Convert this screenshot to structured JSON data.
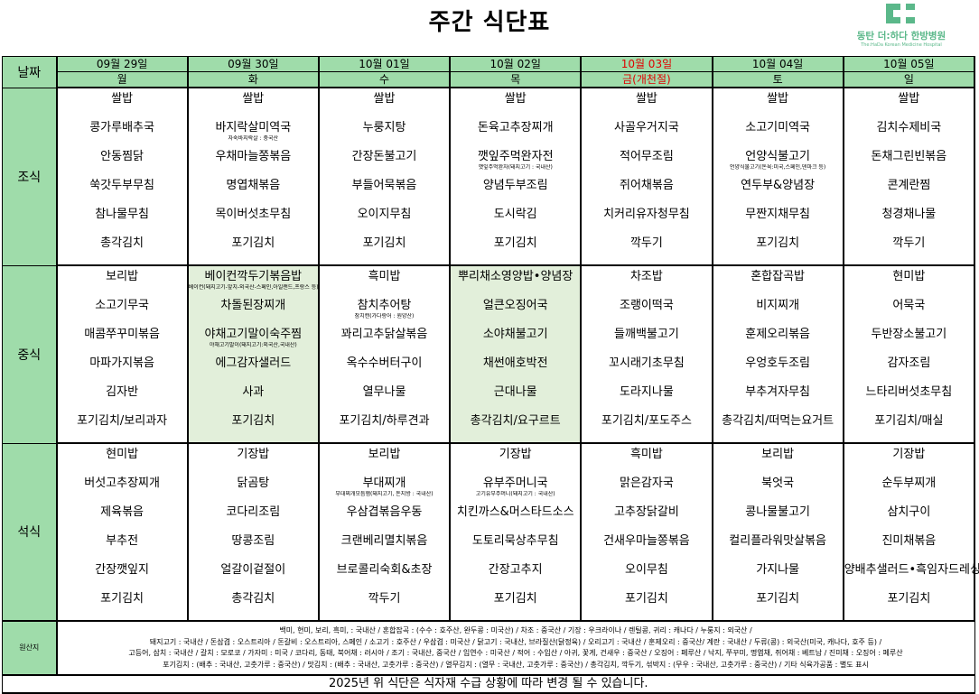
{
  "title": "주간 식단표",
  "logo": {
    "name_ko": "동탄 더:하다 한방병원",
    "name_en": "The:HaDa Korean Medicine Hospital",
    "color": "#5bb88a"
  },
  "labels": {
    "date": "날짜",
    "breakfast": "조식",
    "lunch": "중식",
    "dinner": "석식",
    "origin": "원산지"
  },
  "days": [
    {
      "date": "09월 29일",
      "weekday": "월",
      "holiday": false
    },
    {
      "date": "09월 30일",
      "weekday": "화",
      "holiday": false
    },
    {
      "date": "10월 01일",
      "weekday": "수",
      "holiday": false
    },
    {
      "date": "10월 02일",
      "weekday": "목",
      "holiday": false
    },
    {
      "date": "10월 03일",
      "weekday": "금(개천절)",
      "holiday": true
    },
    {
      "date": "10월 04일",
      "weekday": "토",
      "holiday": false
    },
    {
      "date": "10월 05일",
      "weekday": "일",
      "holiday": false
    }
  ],
  "meals": {
    "breakfast": [
      [
        {
          "t": "쌀밥"
        },
        {
          "t": "콩가루배추국"
        },
        {
          "t": "안동찜닭"
        },
        {
          "t": "쑥갓두부무침"
        },
        {
          "t": "참나물무침"
        },
        {
          "t": "총각김치"
        }
      ],
      [
        {
          "t": "쌀밥"
        },
        {
          "t": "바지락살미역국",
          "n": "자숙바지락살 : 중국산"
        },
        {
          "t": "우채마늘쫑볶음"
        },
        {
          "t": "명엽채볶음"
        },
        {
          "t": "목이버섯초무침"
        },
        {
          "t": "포기김치"
        }
      ],
      [
        {
          "t": "쌀밥"
        },
        {
          "t": "누룽지탕"
        },
        {
          "t": "간장돈불고기"
        },
        {
          "t": "부들어묵볶음"
        },
        {
          "t": "오이지무침"
        },
        {
          "t": "포기김치"
        }
      ],
      [
        {
          "t": "쌀밥"
        },
        {
          "t": "돈육고추장찌개"
        },
        {
          "t": "깻잎주먹완자전",
          "n": "깻잎주먹완자(돼지고기 : 국내산)"
        },
        {
          "t": "양념두부조림"
        },
        {
          "t": "도시락김"
        },
        {
          "t": "포기김치"
        }
      ],
      [
        {
          "t": "쌀밥"
        },
        {
          "t": "사골우거지국"
        },
        {
          "t": "적어무조림"
        },
        {
          "t": "쥐어채볶음"
        },
        {
          "t": "치커리유자청무침"
        },
        {
          "t": "깍두기"
        }
      ],
      [
        {
          "t": "쌀밥"
        },
        {
          "t": "소고기미역국"
        },
        {
          "t": "언양식불고기",
          "n": "언양식불고기(돈육:미국,스페인,덴마크 등)"
        },
        {
          "t": "연두부&양념장"
        },
        {
          "t": "무짠지채무침"
        },
        {
          "t": "포기김치"
        }
      ],
      [
        {
          "t": "쌀밥"
        },
        {
          "t": "김치수제비국"
        },
        {
          "t": "돈채그린빈볶음"
        },
        {
          "t": "콘계란찜"
        },
        {
          "t": "청경채나물"
        },
        {
          "t": "깍두기"
        }
      ]
    ],
    "lunch": [
      [
        {
          "t": "보리밥"
        },
        {
          "t": "소고기무국"
        },
        {
          "t": "매콤쭈꾸미볶음"
        },
        {
          "t": "마파가지볶음"
        },
        {
          "t": "김자반"
        },
        {
          "t": "포기김치/보리과자"
        }
      ],
      [
        {
          "t": "베이컨깍두기볶음밥",
          "n": "베이컨(돼지고기-앞치-외국산-스페인,아일랜드,프랑스 등)"
        },
        {
          "t": "차돌된장찌개"
        },
        {
          "t": "야채고기말이숙주찜",
          "n": "야채고기말이(돼지고기:외국산,국내산)"
        },
        {
          "t": "에그감자샐러드"
        },
        {
          "t": "사과"
        },
        {
          "t": "포기김치"
        }
      ],
      [
        {
          "t": "흑미밥"
        },
        {
          "t": "참치추어탕",
          "n": "참치캔(가다랑어 : 원양산)"
        },
        {
          "t": "꽈리고추닭살볶음"
        },
        {
          "t": "옥수수버터구이"
        },
        {
          "t": "열무나물"
        },
        {
          "t": "포기김치/하루견과"
        }
      ],
      [
        {
          "t": "뿌리채소영양밥•양념장"
        },
        {
          "t": "얼큰오징어국"
        },
        {
          "t": "소야채불고기"
        },
        {
          "t": "채썬애호박전"
        },
        {
          "t": "근대나물"
        },
        {
          "t": "총각김치/요구르트"
        }
      ],
      [
        {
          "t": "차조밥"
        },
        {
          "t": "조랭이떡국"
        },
        {
          "t": "들깨백불고기"
        },
        {
          "t": "꼬시래기초무침"
        },
        {
          "t": "도라지나물"
        },
        {
          "t": "포기김치/포도주스"
        }
      ],
      [
        {
          "t": "혼합잡곡밥"
        },
        {
          "t": "비지찌개"
        },
        {
          "t": "훈제오리볶음"
        },
        {
          "t": "우엉호두조림"
        },
        {
          "t": "부추겨자무침"
        },
        {
          "t": "총각김치/떠먹는요거트"
        }
      ],
      [
        {
          "t": "현미밥"
        },
        {
          "t": "어묵국"
        },
        {
          "t": "두반장소불고기"
        },
        {
          "t": "감자조림"
        },
        {
          "t": "느타리버섯초무침"
        },
        {
          "t": "포기김치/매실"
        }
      ]
    ],
    "dinner": [
      [
        {
          "t": "현미밥"
        },
        {
          "t": "버섯고추장찌개"
        },
        {
          "t": "제육볶음"
        },
        {
          "t": "부추전"
        },
        {
          "t": "간장깻잎지"
        },
        {
          "t": "포기김치"
        }
      ],
      [
        {
          "t": "기장밥"
        },
        {
          "t": "닭곰탕"
        },
        {
          "t": "코다리조림"
        },
        {
          "t": "땅콩조림"
        },
        {
          "t": "얼갈이겉절이"
        },
        {
          "t": "총각김치"
        }
      ],
      [
        {
          "t": "보리밥"
        },
        {
          "t": "부대찌개",
          "n": "부대찌개모듬햄(돼지고기, 돈지방 : 국내산)"
        },
        {
          "t": "우삼겹볶음우동"
        },
        {
          "t": "크랜베리멸치볶음"
        },
        {
          "t": "브로콜리숙회&초장"
        },
        {
          "t": "깍두기"
        }
      ],
      [
        {
          "t": "기장밥"
        },
        {
          "t": "유부주머니국",
          "n": "고기유부주머니(돼지고기 : 국내산)"
        },
        {
          "t": "치킨까스&머스타드소스"
        },
        {
          "t": "도토리묵상추무침"
        },
        {
          "t": "간장고추지"
        },
        {
          "t": "포기김치"
        }
      ],
      [
        {
          "t": "흑미밥"
        },
        {
          "t": "맑은감자국"
        },
        {
          "t": "고추장닭갈비"
        },
        {
          "t": "건새우마늘쫑볶음"
        },
        {
          "t": "오이무침"
        },
        {
          "t": "포기김치"
        }
      ],
      [
        {
          "t": "보리밥"
        },
        {
          "t": "북엇국"
        },
        {
          "t": "콩나물불고기"
        },
        {
          "t": "컬리플라워맛살볶음"
        },
        {
          "t": "가지나물"
        },
        {
          "t": "포기김치"
        }
      ],
      [
        {
          "t": "기장밥"
        },
        {
          "t": "순두부찌개"
        },
        {
          "t": "삼치구이"
        },
        {
          "t": "진미채볶음"
        },
        {
          "t": "양배추샐러드•흑임자드레싱"
        },
        {
          "t": "포기김치"
        }
      ]
    ]
  },
  "shaded_lunch_days": [
    1,
    3
  ],
  "origin_lines": [
    "백미, 현미, 보리, 흑미, : 국내산 / 혼합잡곡 : (수수 : 호주산, 완두콩 : 미국산) / 차조 : 중국산 / 기장 : 우크라이나 / 렌틸콩, 귀리 : 캐나다 / 누룽지 : 외국산 /",
    "돼지고기 : 국내산 / 돈삼겹 : 오스트리아 / 돈갈비 : 오스트리아, 스페인 / 소고기 : 호주산 / 우삼겹 : 미국산 / 닭고기 : 국내산, 브라질산(닭정육) / 오리고기 : 국내산 / 훈제오리 : 중국산/ 계란 : 국내산 / 두류(콩) : 외국산(미국, 캐나다, 호주 등) /",
    "고등어, 삼치 : 국내산 / 갈치 : 모로코 / 가자미 : 미국 / 코다리, 동태, 북어채 : 러시아 / 조기 : 국내산, 중국산 / 임연수 : 미국산 / 적어 : 수입산 / 아귀, 꽃게, 건새우 : 중국산 / 오징어 : 페루산 / 낙지, 쭈꾸미, 명엽채, 쥐어채 : 베트남 / 진미채 : 오징어 : 페루산",
    "포기김치 : (배추 : 국내산, 고춧가루 : 중국산) / 맛김치 : (배추 : 국내산, 고춧가루 : 중국산) / 열무김치 : (열무 : 국내산, 고춧가루 : 중국산) / 총각김치, 깍두기, 섞박지 : (무우 : 국내산, 고춧가루 : 중국산) / 기타 식육가공품 : 별도 표시"
  ],
  "footer": "2025년 위 식단은 식자재 수급 상황에 따라 변경 될 수 있습니다.",
  "colors": {
    "header_bg": "#9fdcaa",
    "shade_bg": "#e2efda",
    "holiday": "#e00000"
  }
}
